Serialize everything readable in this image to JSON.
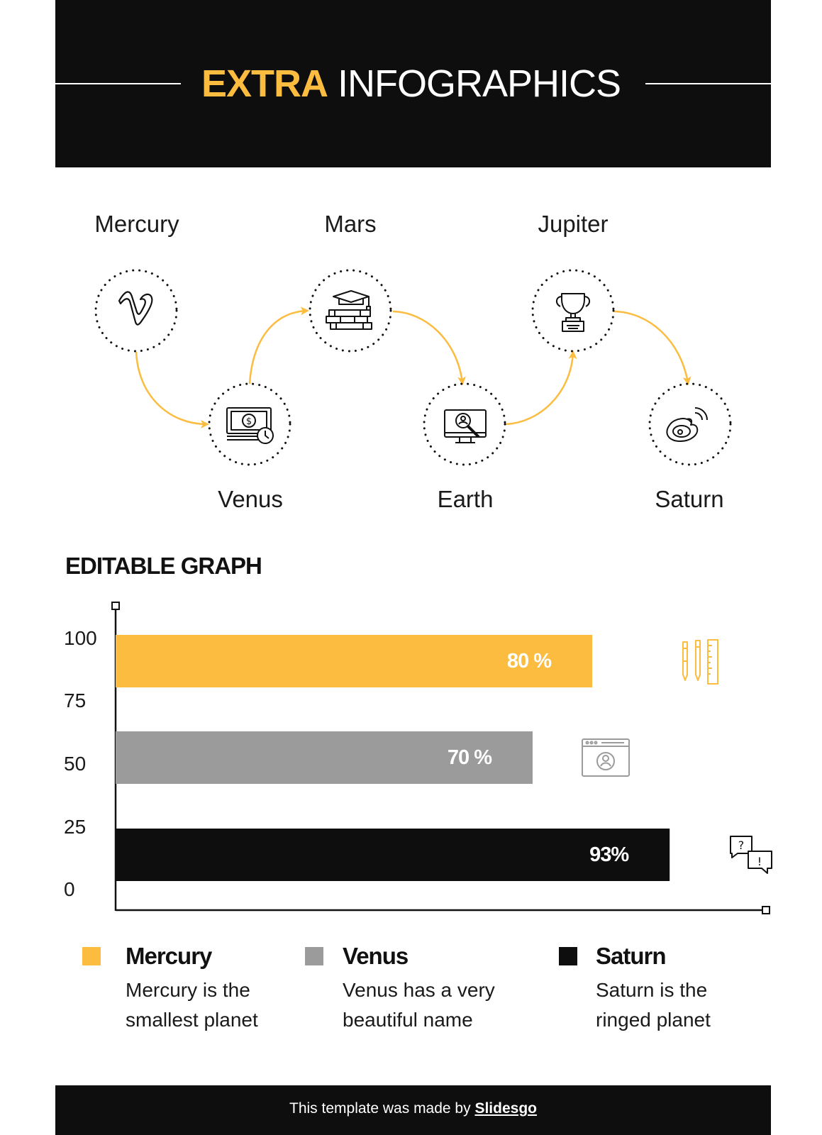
{
  "header": {
    "title_accent": "EXTRA",
    "title_rest": "INFOGRAPHICS"
  },
  "flow": {
    "planets": [
      {
        "label": "Mercury",
        "icon": "vimeo-icon"
      },
      {
        "label": "Venus",
        "icon": "money-clock-icon"
      },
      {
        "label": "Mars",
        "icon": "books-graduation-icon"
      },
      {
        "label": "Earth",
        "icon": "monitor-search-user-icon"
      },
      {
        "label": "Jupiter",
        "icon": "trophy-icon"
      },
      {
        "label": "Saturn",
        "icon": "weibo-icon"
      }
    ],
    "arrow_color": "#fbbc3f"
  },
  "graph": {
    "heading": "EDITABLE GRAPH"
  },
  "chart_data": {
    "type": "bar",
    "orientation": "horizontal",
    "title": "EDITABLE GRAPH",
    "y_ticks": [
      "100",
      "75",
      "50",
      "25",
      "0"
    ],
    "series": [
      {
        "name": "Mercury",
        "value": 80,
        "label": "80 %",
        "color": "#fbbc3f",
        "icon": "pens-ruler-icon"
      },
      {
        "name": "Venus",
        "value": 70,
        "label": "70 %",
        "color": "#9b9b9b",
        "icon": "browser-user-icon"
      },
      {
        "name": "Saturn",
        "value": 93,
        "label": "93%",
        "color": "#0e0e0e",
        "icon": "chat-question-exclamation-icon"
      }
    ],
    "xlim": [
      0,
      100
    ],
    "grid": false
  },
  "legend": [
    {
      "title": "Mercury",
      "desc": "Mercury is the smallest planet",
      "color": "#fbbc3f"
    },
    {
      "title": "Venus",
      "desc": "Venus has a very beautiful name",
      "color": "#9b9b9b"
    },
    {
      "title": "Saturn",
      "desc": "Saturn is the ringed planet",
      "color": "#0e0e0e"
    }
  ],
  "footer": {
    "text": "This template was made by ",
    "link": "Slidesgo"
  },
  "colors": {
    "accent": "#fbbc3f",
    "dark": "#0e0e0e",
    "gray": "#9b9b9b"
  }
}
